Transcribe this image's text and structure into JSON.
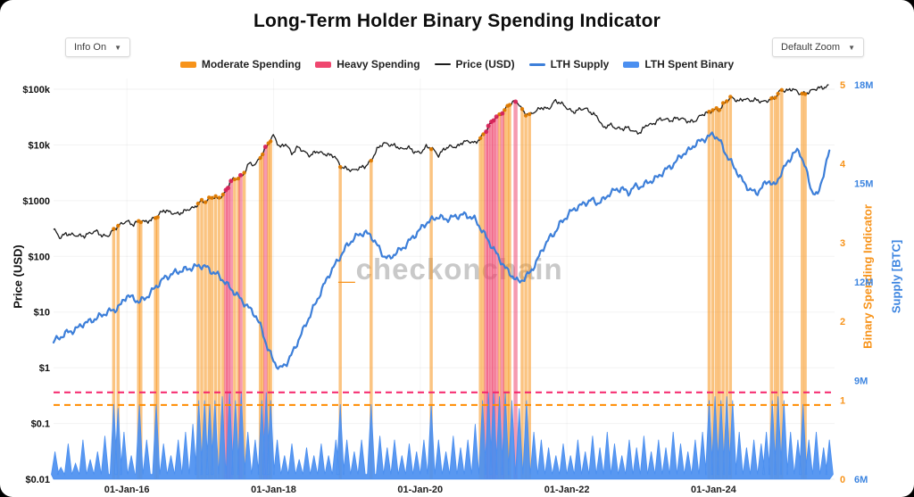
{
  "header": {
    "title": "Long-Term Holder Binary Spending Indicator",
    "info_dropdown": {
      "label": "Info On",
      "caret": "▼"
    },
    "zoom_dropdown": {
      "label": "Default Zoom",
      "caret": "▼"
    }
  },
  "legend": {
    "items": [
      {
        "label": "Moderate Spending",
        "color": "#f7931a",
        "marker": "bar"
      },
      {
        "label": "Heavy Spending",
        "color": "#ef476f",
        "marker": "bar"
      },
      {
        "label": "Price (USD)",
        "color": "#1c1c1c",
        "marker": "line"
      },
      {
        "label": "LTH Supply",
        "color": "#3d7fd9",
        "marker": "thickline"
      },
      {
        "label": "LTH Spent Binary",
        "color": "#4b8ff0",
        "marker": "bar"
      }
    ]
  },
  "axes": {
    "price_title": "Price (USD)",
    "binary_title": "Binary Spending Indicator",
    "supply_title": "Supply [BTC]"
  },
  "watermark": {
    "prefix": "_",
    "text": "checkonchain"
  },
  "colors": {
    "moderate": "#f7931a",
    "moderate_cap": "#e07b00",
    "heavy": "#ef476f",
    "heavy_cap": "#d9255b",
    "price_line": "#1c1c1c",
    "supply_line": "#3d7fd9",
    "binary_fill": "#4b8ff0",
    "threshold_moderate": "#ff8c00",
    "threshold_heavy": "#f5256b",
    "watermark": "#c9c9c9",
    "accent_orange": "#f7931a",
    "axis_blue": "#3d85e0",
    "tick_dark": "#111111"
  },
  "chart_data": {
    "type": "line",
    "title": "Long-Term Holder Binary Spending Indicator",
    "x_range": [
      2015.0,
      2025.65
    ],
    "x_ticks": [
      [
        2016,
        "01-Jan-16"
      ],
      [
        2018,
        "01-Jan-18"
      ],
      [
        2020,
        "01-Jan-20"
      ],
      [
        2022,
        "01-Jan-22"
      ],
      [
        2024,
        "01-Jan-24"
      ]
    ],
    "price_axis": {
      "scale": "log",
      "ticks": [
        [
          100000,
          "$100k"
        ],
        [
          10000,
          "$10k"
        ],
        [
          1000,
          "$1000"
        ],
        [
          100,
          "$100"
        ],
        [
          10,
          "$10"
        ],
        [
          1,
          "$1"
        ],
        [
          0.1,
          "$0.1"
        ],
        [
          0.01,
          "$0.01"
        ]
      ]
    },
    "binary_axis": {
      "range": [
        0,
        5
      ],
      "ticks": [
        0,
        1,
        2,
        3,
        4,
        5
      ]
    },
    "supply_axis": {
      "range_millions": [
        6,
        18
      ],
      "ticks": [
        [
          6,
          "6M"
        ],
        [
          9,
          "9M"
        ],
        [
          12,
          "12M"
        ],
        [
          15,
          "15M"
        ],
        [
          18,
          "18M"
        ]
      ]
    },
    "thresholds": {
      "moderate": 0.94,
      "heavy": 1.1
    },
    "series": {
      "price_usd": {
        "t0": 2015.0,
        "dt_years": 0.083333,
        "values": [
          314,
          217,
          254,
          244,
          236,
          230,
          263,
          284,
          230,
          236,
          314,
          377,
          430,
          368,
          437,
          416,
          448,
          531,
          673,
          624,
          575,
          609,
          700,
          745,
          963,
          970,
          1180,
          1080,
          1350,
          2300,
          2480,
          2875,
          4700,
          4360,
          6450,
          9900,
          15000,
          9000,
          10500,
          6940,
          9240,
          7500,
          6400,
          7730,
          7030,
          6630,
          6300,
          4040,
          3740,
          3460,
          3850,
          4100,
          5350,
          8570,
          10800,
          10100,
          9600,
          8300,
          9150,
          7550,
          7200,
          9350,
          8550,
          6440,
          8650,
          9450,
          9140,
          11350,
          11650,
          10780,
          13800,
          19700,
          29000,
          33100,
          45200,
          58800,
          57750,
          37300,
          35000,
          41600,
          47100,
          43800,
          61300,
          57000,
          46200,
          38500,
          43200,
          45500,
          37650,
          31800,
          19950,
          23300,
          20050,
          19400,
          20500,
          17150,
          16550,
          23100,
          23150,
          28450,
          29250,
          27200,
          30470,
          29230,
          25930,
          26960,
          34650,
          37700,
          42270,
          42580,
          61200,
          71300,
          60640,
          67500,
          62680,
          64600,
          58970,
          63330,
          70200,
          96400,
          93400,
          102400,
          84350,
          82550,
          94200,
          104600,
          107100,
          115800
        ]
      },
      "lth_supply_millions": {
        "t0": 2015.0,
        "dt_years": 0.083333,
        "values": [
          10.2,
          10.3,
          10.45,
          10.5,
          10.6,
          10.75,
          10.8,
          10.9,
          11.0,
          11.1,
          11.15,
          11.3,
          11.6,
          11.5,
          11.4,
          11.5,
          11.7,
          11.9,
          12.1,
          12.2,
          12.3,
          12.35,
          12.4,
          12.45,
          12.5,
          12.45,
          12.3,
          12.2,
          12.0,
          11.8,
          11.6,
          11.4,
          11.2,
          11.0,
          10.6,
          10.0,
          9.6,
          9.35,
          9.5,
          9.8,
          10.2,
          10.6,
          11.0,
          11.4,
          11.8,
          12.2,
          12.5,
          12.8,
          13.1,
          13.3,
          13.45,
          13.5,
          13.4,
          13.1,
          12.8,
          12.7,
          12.9,
          13.0,
          13.2,
          13.4,
          13.6,
          13.8,
          13.9,
          14.0,
          13.9,
          13.95,
          14.0,
          14.05,
          14.0,
          13.9,
          13.6,
          13.3,
          13.0,
          12.7,
          12.4,
          12.2,
          12.0,
          12.1,
          12.3,
          12.6,
          13.0,
          13.3,
          13.5,
          13.8,
          14.0,
          14.2,
          14.3,
          14.4,
          14.5,
          14.4,
          14.5,
          14.7,
          14.8,
          14.85,
          14.7,
          14.9,
          14.9,
          15.0,
          15.1,
          15.2,
          15.4,
          15.5,
          15.7,
          15.9,
          16.0,
          16.2,
          16.3,
          16.4,
          16.5,
          16.3,
          15.9,
          15.6,
          15.3,
          15.0,
          14.8,
          14.7,
          14.9,
          15.1,
          14.9,
          15.3,
          15.6,
          15.9,
          16.0,
          15.5,
          14.8,
          14.6,
          15.3,
          16.0
        ]
      },
      "lth_spent_binary_spikes": [
        [
          2015.02,
          0.35
        ],
        [
          2015.1,
          0.15
        ],
        [
          2015.2,
          0.45
        ],
        [
          2015.3,
          0.2
        ],
        [
          2015.4,
          0.5
        ],
        [
          2015.5,
          0.25
        ],
        [
          2015.6,
          0.35
        ],
        [
          2015.7,
          0.55
        ],
        [
          2015.82,
          0.95
        ],
        [
          2015.88,
          0.9
        ],
        [
          2015.96,
          0.6
        ],
        [
          2016.06,
          0.3
        ],
        [
          2016.17,
          0.95
        ],
        [
          2016.27,
          0.5
        ],
        [
          2016.4,
          0.95
        ],
        [
          2016.5,
          0.45
        ],
        [
          2016.6,
          0.3
        ],
        [
          2016.7,
          0.5
        ],
        [
          2016.8,
          0.6
        ],
        [
          2016.9,
          0.7
        ],
        [
          2016.98,
          1.0
        ],
        [
          2017.06,
          1.0
        ],
        [
          2017.13,
          0.95
        ],
        [
          2017.2,
          1.0
        ],
        [
          2017.3,
          1.05
        ],
        [
          2017.4,
          1.1
        ],
        [
          2017.48,
          1.0
        ],
        [
          2017.56,
          1.1
        ],
        [
          2017.65,
          0.6
        ],
        [
          2017.75,
          0.5
        ],
        [
          2017.84,
          1.0
        ],
        [
          2017.9,
          1.1
        ],
        [
          2017.96,
          1.0
        ],
        [
          2018.05,
          0.5
        ],
        [
          2018.15,
          0.3
        ],
        [
          2018.25,
          0.45
        ],
        [
          2018.35,
          0.25
        ],
        [
          2018.45,
          0.4
        ],
        [
          2018.55,
          0.3
        ],
        [
          2018.65,
          0.45
        ],
        [
          2018.75,
          0.3
        ],
        [
          2018.85,
          0.5
        ],
        [
          2018.91,
          0.95
        ],
        [
          2019.0,
          0.5
        ],
        [
          2019.1,
          0.35
        ],
        [
          2019.2,
          0.5
        ],
        [
          2019.33,
          0.95
        ],
        [
          2019.45,
          0.55
        ],
        [
          2019.55,
          0.4
        ],
        [
          2019.65,
          0.5
        ],
        [
          2019.75,
          0.3
        ],
        [
          2019.85,
          0.45
        ],
        [
          2019.95,
          0.35
        ],
        [
          2020.05,
          0.5
        ],
        [
          2020.15,
          0.95
        ],
        [
          2020.25,
          0.5
        ],
        [
          2020.35,
          0.35
        ],
        [
          2020.45,
          0.55
        ],
        [
          2020.55,
          0.4
        ],
        [
          2020.65,
          0.5
        ],
        [
          2020.75,
          0.7
        ],
        [
          2020.85,
          1.0
        ],
        [
          2020.93,
          1.1
        ],
        [
          2021.0,
          1.1
        ],
        [
          2021.08,
          1.05
        ],
        [
          2021.16,
          1.1
        ],
        [
          2021.25,
          1.0
        ],
        [
          2021.35,
          0.9
        ],
        [
          2021.45,
          1.0
        ],
        [
          2021.55,
          0.6
        ],
        [
          2021.65,
          0.5
        ],
        [
          2021.75,
          0.4
        ],
        [
          2021.85,
          0.3
        ],
        [
          2021.95,
          0.45
        ],
        [
          2022.05,
          0.3
        ],
        [
          2022.15,
          0.5
        ],
        [
          2022.25,
          0.35
        ],
        [
          2022.35,
          0.55
        ],
        [
          2022.45,
          0.4
        ],
        [
          2022.55,
          0.6
        ],
        [
          2022.65,
          0.45
        ],
        [
          2022.75,
          0.3
        ],
        [
          2022.85,
          0.5
        ],
        [
          2022.95,
          0.4
        ],
        [
          2023.05,
          0.55
        ],
        [
          2023.15,
          0.35
        ],
        [
          2023.25,
          0.5
        ],
        [
          2023.35,
          0.4
        ],
        [
          2023.45,
          0.6
        ],
        [
          2023.55,
          0.45
        ],
        [
          2023.65,
          0.35
        ],
        [
          2023.75,
          0.5
        ],
        [
          2023.85,
          0.6
        ],
        [
          2023.94,
          1.0
        ],
        [
          2024.02,
          1.05
        ],
        [
          2024.1,
          1.0
        ],
        [
          2024.18,
          1.05
        ],
        [
          2024.26,
          1.0
        ],
        [
          2024.35,
          0.6
        ],
        [
          2024.45,
          0.4
        ],
        [
          2024.55,
          0.5
        ],
        [
          2024.65,
          0.45
        ],
        [
          2024.72,
          0.6
        ],
        [
          2024.8,
          1.0
        ],
        [
          2024.88,
          1.05
        ],
        [
          2024.96,
          1.0
        ],
        [
          2025.05,
          0.6
        ],
        [
          2025.15,
          0.5
        ],
        [
          2025.22,
          0.95
        ],
        [
          2025.3,
          0.5
        ],
        [
          2025.4,
          0.6
        ],
        [
          2025.5,
          0.4
        ],
        [
          2025.58,
          0.5
        ]
      ]
    },
    "events": {
      "moderate_spending": [
        2015.82,
        2015.88,
        2016.16,
        2016.19,
        2016.39,
        2016.42,
        2016.97,
        2017.02,
        2017.07,
        2017.12,
        2017.16,
        2017.21,
        2017.26,
        2017.31,
        2017.47,
        2017.52,
        2017.6,
        2017.82,
        2017.85,
        2017.93,
        2017.96,
        2018.91,
        2019.33,
        2020.15,
        2020.82,
        2020.86,
        2021.08,
        2021.15,
        2021.19,
        2021.22,
        2021.39,
        2021.44,
        2021.49,
        2023.94,
        2023.99,
        2024.04,
        2024.08,
        2024.13,
        2024.18,
        2024.23,
        2024.79,
        2024.84,
        2024.88,
        2024.93,
        2025.21,
        2025.25
      ],
      "heavy_spending": [
        2017.35,
        2017.38,
        2017.42,
        2017.55,
        2017.89,
        2020.9,
        2020.93,
        2020.97,
        2021.0,
        2021.04,
        2021.12,
        2021.3
      ]
    }
  }
}
